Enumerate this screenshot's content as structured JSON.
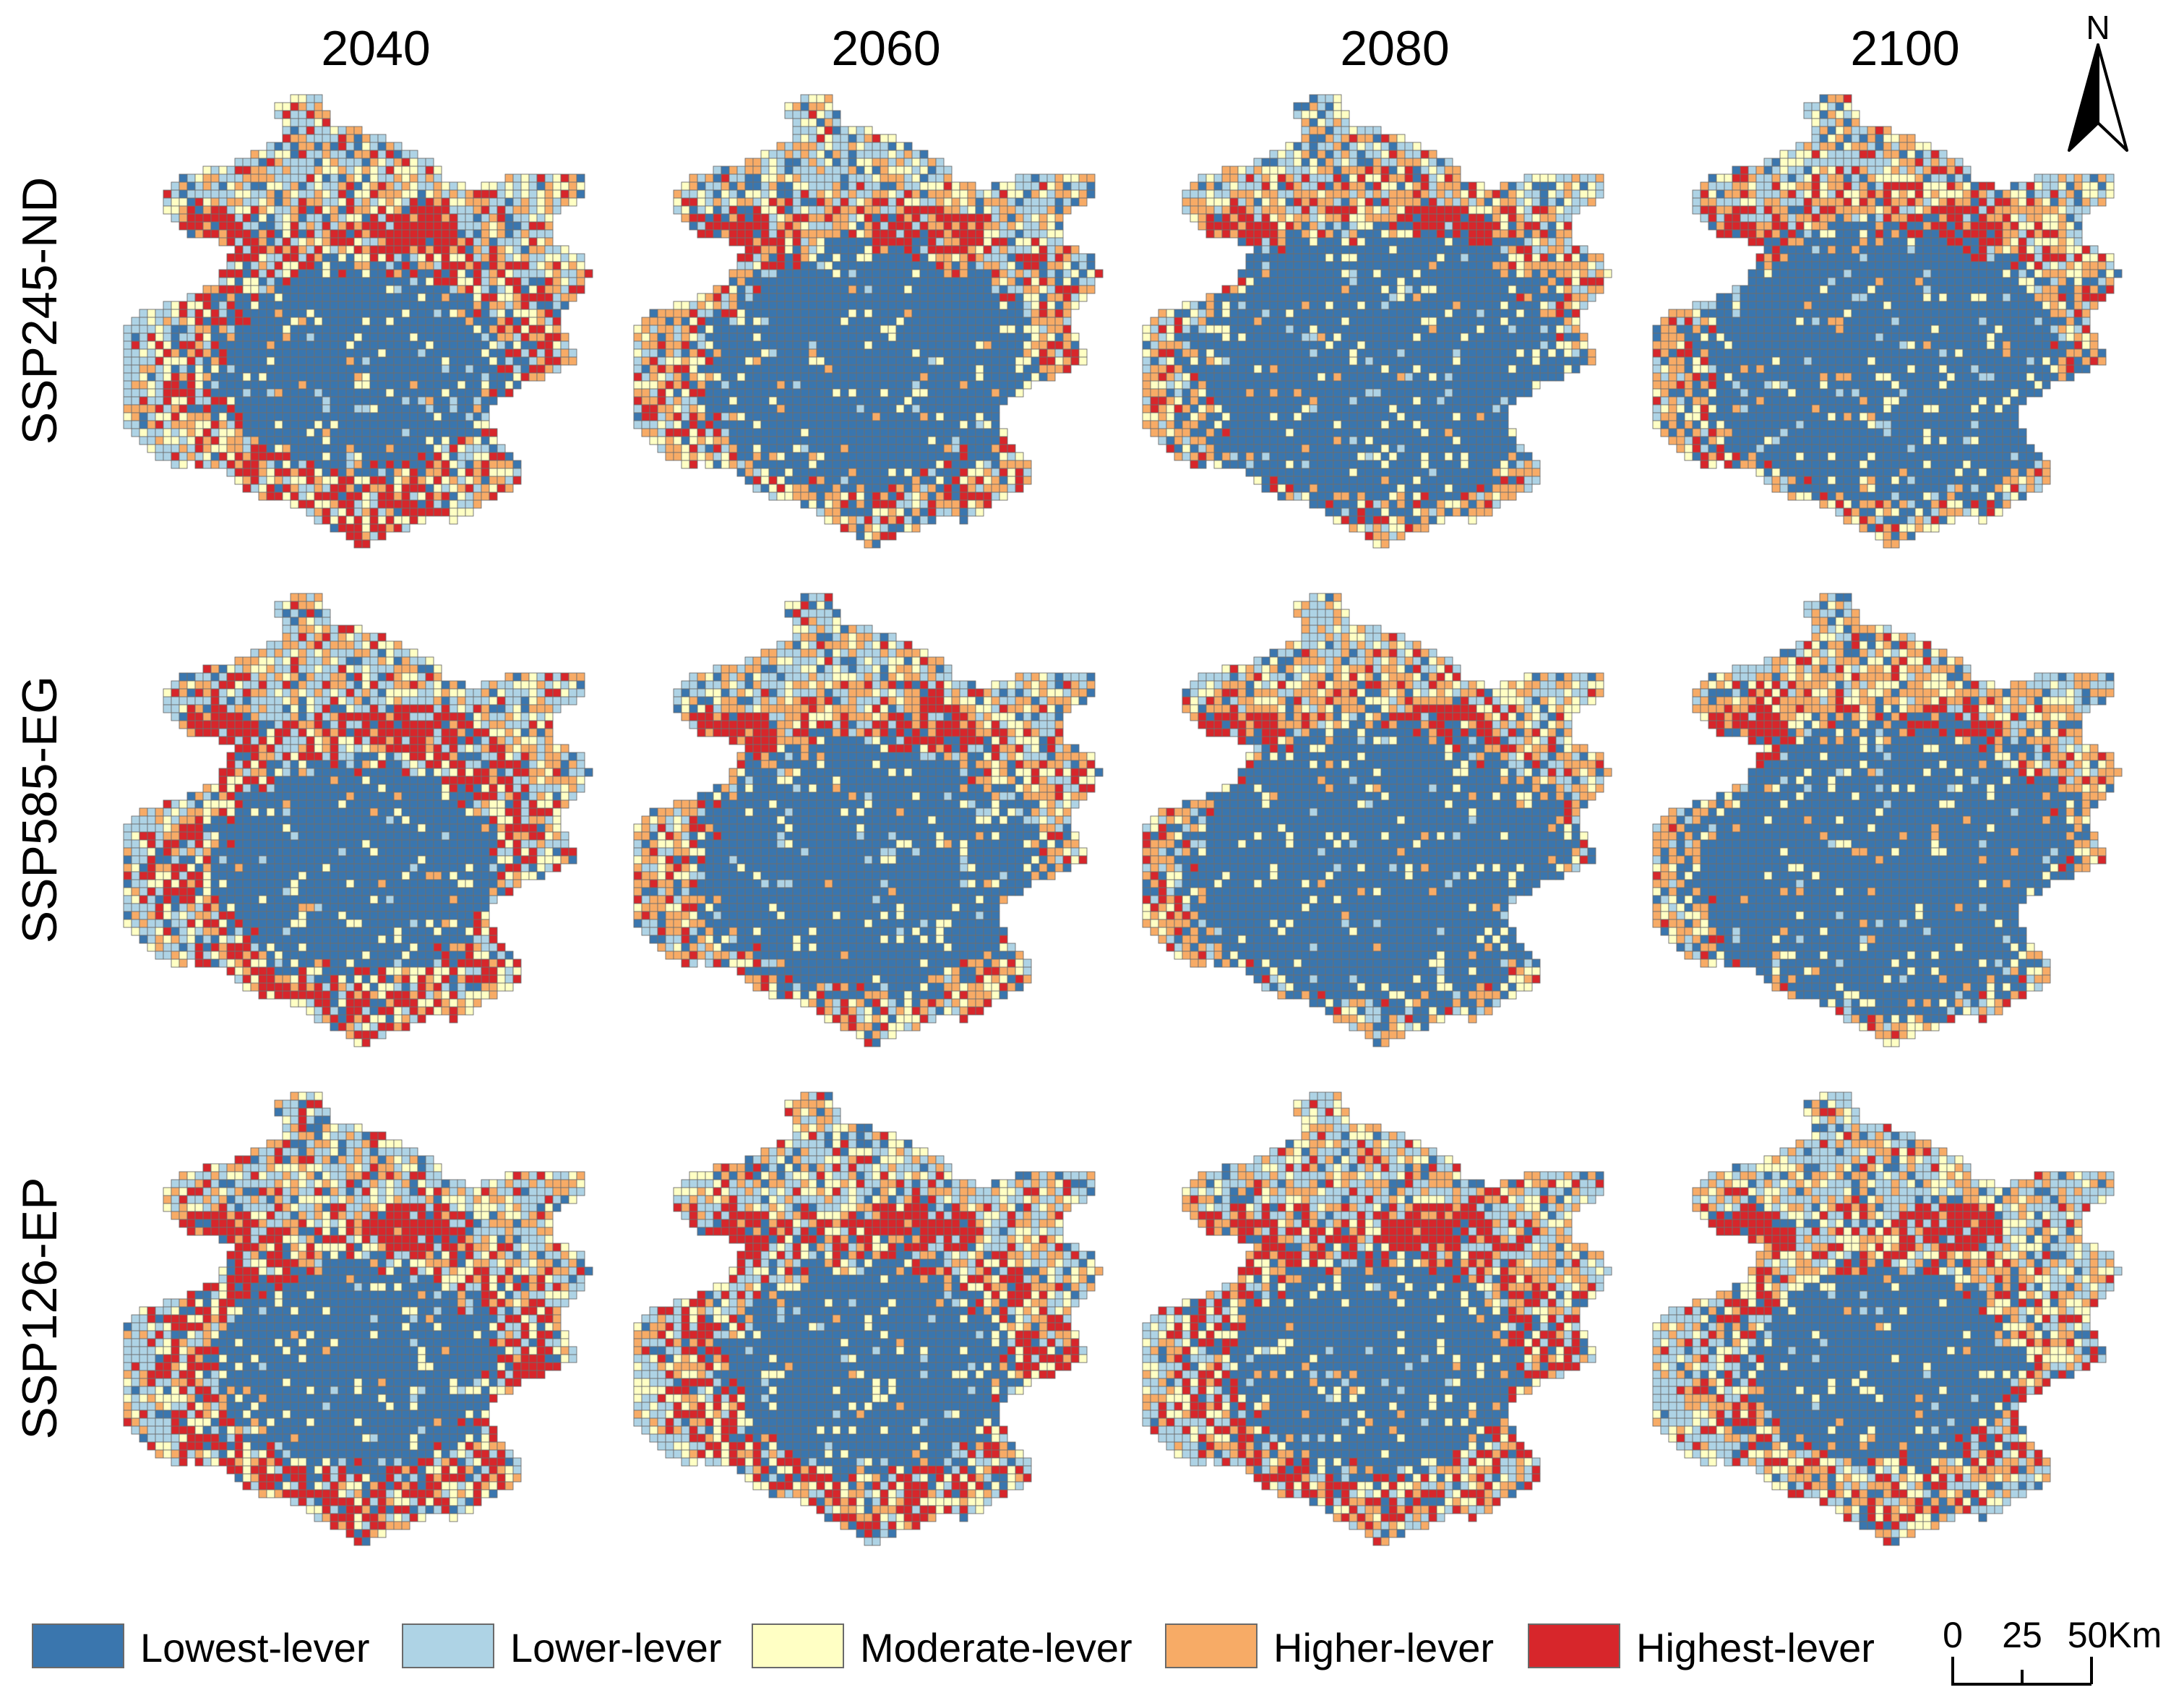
{
  "columns": [
    "2040",
    "2060",
    "2080",
    "2100"
  ],
  "rows": [
    "SSP245-ND",
    "SSP585-EG",
    "SSP126-EP"
  ],
  "panels_lowest_extent": [
    [
      0.5,
      0.64,
      0.8,
      0.8
    ],
    [
      0.52,
      0.7,
      0.82,
      0.84
    ],
    [
      0.5,
      0.52,
      0.53,
      0.44
    ]
  ],
  "panels_highest_share": [
    [
      0.22,
      0.13,
      0.1,
      0.11
    ],
    [
      0.24,
      0.12,
      0.09,
      0.08
    ],
    [
      0.25,
      0.23,
      0.22,
      0.17
    ]
  ],
  "north_label": "N",
  "legend": [
    {
      "label": "Lowest-lever",
      "color": "#3a76ae"
    },
    {
      "label": "Lower-lever",
      "color": "#aed3e5"
    },
    {
      "label": "Moderate-lever",
      "color": "#ffffc4"
    },
    {
      "label": "Higher-lever",
      "color": "#f7ab66"
    },
    {
      "label": "Highest-lever",
      "color": "#d7262b"
    }
  ],
  "scale": {
    "labels": [
      "0",
      "25",
      "50Km"
    ]
  }
}
